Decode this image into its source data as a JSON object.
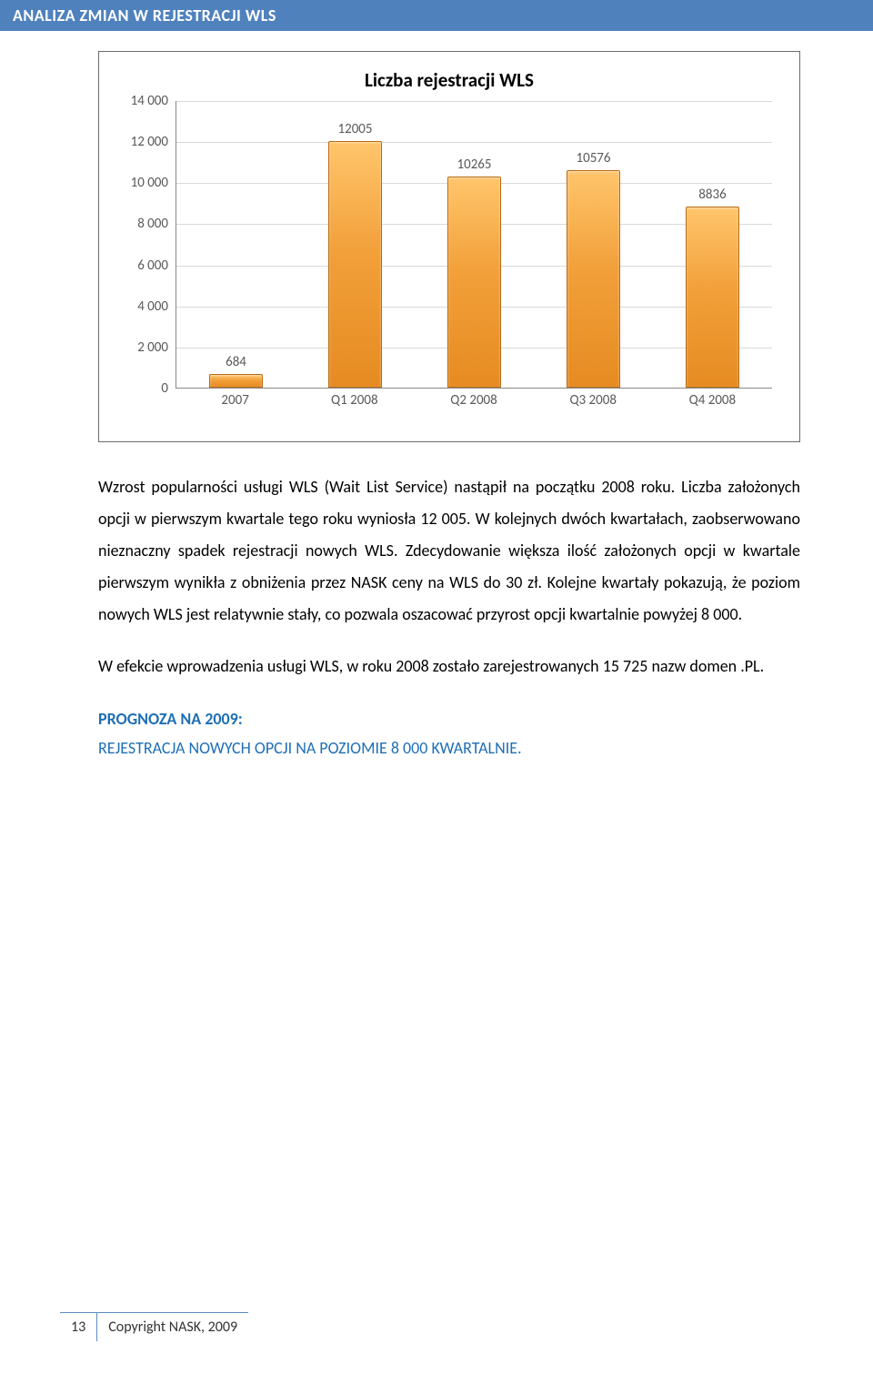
{
  "header": {
    "title": "ANALIZA ZMIAN W REJESTRACJI WLS"
  },
  "chart": {
    "type": "bar",
    "title": "Liczba rejestracji WLS",
    "title_fontsize": 21,
    "categories": [
      "2007",
      "Q1 2008",
      "Q2 2008",
      "Q3 2008",
      "Q4 2008"
    ],
    "values": [
      684,
      12005,
      10265,
      10576,
      8836
    ],
    "bar_color_gradient": [
      "#ffc56b",
      "#f2a03a",
      "#e68b22"
    ],
    "bar_border_color": "#b86b15",
    "ylim": [
      0,
      14000
    ],
    "ytick_step": 2000,
    "ytick_labels": [
      "0",
      "2 000",
      "4 000",
      "6 000",
      "8 000",
      "10 000",
      "12 000",
      "14 000"
    ],
    "grid_color": "#d9d9d9",
    "axis_color": "#888888",
    "label_color": "#595959",
    "label_fontsize": 15,
    "bar_width_pct": 9,
    "background_color": "#ffffff"
  },
  "body": {
    "p1": "Wzrost popularności usługi WLS (Wait List Service) nastąpił na początku 2008 roku. Liczba założonych opcji w pierwszym kwartale tego roku wyniosła 12 005. W kolejnych dwóch kwartałach, zaobserwowano nieznaczny spadek rejestracji nowych WLS. Zdecydowanie większa ilość założonych opcji w kwartale pierwszym wynikła z obniżenia przez NASK ceny na WLS do 30 zł. Kolejne kwartały pokazują, że poziom nowych WLS jest relatywnie stały, co pozwala oszacować przyrost opcji kwartalnie powyżej 8 000.",
    "p2": "W efekcie wprowadzenia usługi WLS, w roku 2008 zostało zarejestrowanych 15 725 nazw domen .PL.",
    "prognoza_title": "PROGNOZA NA 2009:",
    "prognoza_text": "REJESTRACJA NOWYCH OPCJI NA POZIOMIE  8 000 KWARTALNIE."
  },
  "footer": {
    "page": "13",
    "copyright": "Copyright NASK, 2009"
  }
}
